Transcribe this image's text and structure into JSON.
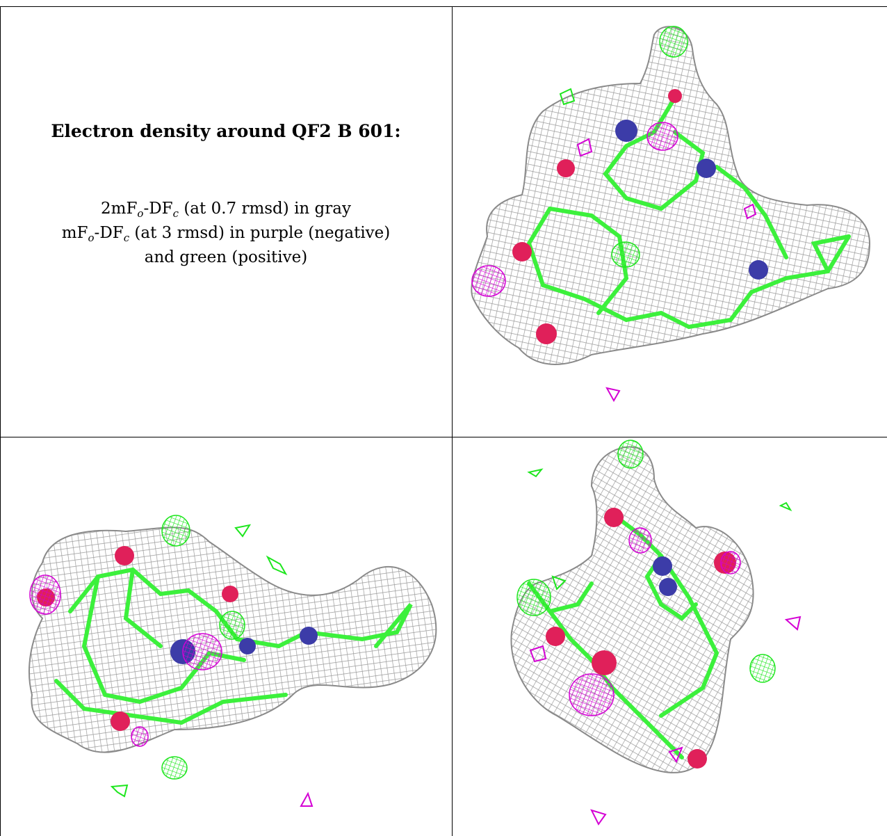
{
  "caption": {
    "title": "Electron density around QF2 B 601:",
    "line1": {
      "pre": "2mF",
      "sub1": "o",
      "mid": "-DF",
      "sub2": "c",
      "post": " (at 0.7 rmsd) in gray"
    },
    "line2": {
      "pre": "mF",
      "sub1": "o",
      "mid": "-DF",
      "sub2": "c",
      "post": " (at 3 rmsd) in purple (negative)"
    },
    "line3": "and green (positive)"
  },
  "colors": {
    "mesh_gray": "#a8a8a8",
    "negative_purple": "#d400d4",
    "positive_green": "#1ee61e",
    "oxygen_red": "#e0205a",
    "nitrogen_blue": "#3c3ca8",
    "carbon_green": "#3cf03c"
  },
  "panels": [
    {
      "view": "top-right"
    },
    {
      "view": "bottom-left"
    },
    {
      "view": "bottom-right"
    }
  ]
}
